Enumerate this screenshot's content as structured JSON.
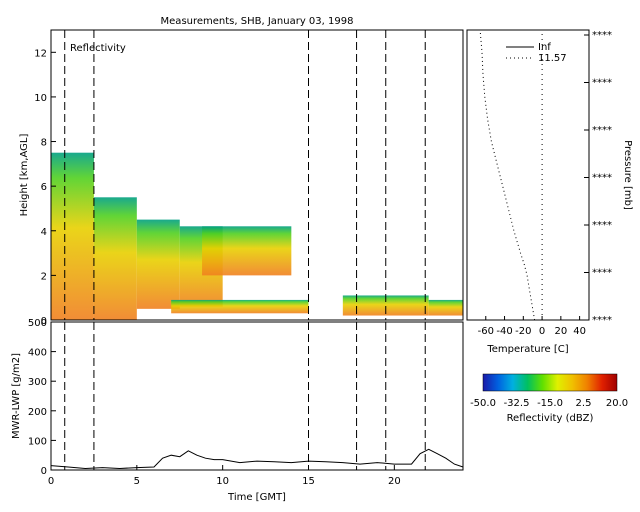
{
  "title": "Measurements, SHB, January 03, 1998",
  "reflectivity_panel": {
    "label": "Reflectivity",
    "ylabel": "Height [km,AGL]",
    "ylim": [
      0,
      13
    ],
    "yticks": [
      0,
      2,
      4,
      6,
      8,
      10,
      12
    ],
    "xlim": [
      0,
      24
    ],
    "dashed_lines_gmt": [
      0.8,
      2.5,
      15.0,
      17.8,
      19.5,
      21.8
    ]
  },
  "lwp_panel": {
    "ylabel": "MWR-LWP [g/m2]",
    "xlabel": "Time [GMT]",
    "ylim": [
      0,
      500
    ],
    "yticks": [
      0,
      100,
      200,
      300,
      400,
      500
    ],
    "xticks": [
      0,
      5,
      10,
      15,
      20
    ],
    "xlim": [
      0,
      24
    ]
  },
  "profile_panel": {
    "xlabel": "Temperature [C]",
    "ylabel_right": "Pressure [mb]",
    "xticks": [
      -60,
      -40,
      -20,
      0,
      20,
      40
    ],
    "xlim": [
      -80,
      50
    ],
    "right_tick_label": "****",
    "legend": [
      {
        "label": "Inf",
        "style": "solid"
      },
      {
        "label": "11.57",
        "style": "dotted"
      }
    ]
  },
  "colorbar": {
    "label": "Reflectivity (dBZ)",
    "ticks": [
      "-50.0",
      "-32.5",
      "-15.0",
      "2.5",
      "20.0"
    ],
    "colors": [
      "#1a1aa8",
      "#0060e0",
      "#00b0e0",
      "#00c060",
      "#60e000",
      "#e0f000",
      "#f0c000",
      "#f08000",
      "#e02000",
      "#a00000"
    ]
  },
  "chart_data": [
    {
      "type": "heatmap",
      "title": "Reflectivity",
      "xlabel": "Time [GMT]",
      "ylabel": "Height [km,AGL]",
      "xlim": [
        0,
        24
      ],
      "ylim": [
        0,
        13
      ],
      "cloud_regions": [
        {
          "t0": 0.0,
          "t1": 2.5,
          "base": 0.0,
          "top": 7.5
        },
        {
          "t0": 2.5,
          "t1": 5.0,
          "base": 0.0,
          "top": 5.5
        },
        {
          "t0": 5.0,
          "t1": 7.5,
          "base": 0.5,
          "top": 4.5
        },
        {
          "t0": 7.5,
          "t1": 10.0,
          "base": 0.6,
          "top": 4.2
        },
        {
          "t0": 8.8,
          "t1": 14.0,
          "base": 2.0,
          "top": 4.2
        },
        {
          "t0": 7.0,
          "t1": 15.0,
          "base": 0.3,
          "top": 0.9
        },
        {
          "t0": 17.0,
          "t1": 22.0,
          "base": 0.2,
          "top": 1.1
        },
        {
          "t0": 22.0,
          "t1": 24.0,
          "base": 0.2,
          "top": 0.9
        }
      ]
    },
    {
      "type": "line",
      "title": "",
      "xlabel": "Time [GMT]",
      "ylabel": "MWR-LWP [g/m2]",
      "xlim": [
        0,
        24
      ],
      "ylim": [
        0,
        500
      ],
      "x": [
        0,
        1,
        2,
        3,
        4,
        5,
        6,
        6.5,
        7,
        7.5,
        8,
        8.5,
        9,
        9.5,
        10,
        11,
        12,
        13,
        14,
        15,
        16,
        17,
        18,
        19,
        20,
        21,
        21.5,
        22,
        22.5,
        23,
        23.5,
        24
      ],
      "y": [
        15,
        10,
        5,
        8,
        5,
        8,
        10,
        40,
        50,
        45,
        65,
        50,
        40,
        35,
        35,
        25,
        30,
        28,
        25,
        30,
        28,
        25,
        20,
        25,
        20,
        20,
        55,
        70,
        55,
        40,
        20,
        10
      ]
    },
    {
      "type": "line",
      "title": "",
      "xlabel": "Temperature [C]",
      "ylabel": "Pressure [mb]",
      "xlim": [
        -80,
        50
      ],
      "height_km": [
        0,
        0.5,
        1,
        1.5,
        2,
        2.5,
        3,
        4,
        5,
        6,
        7,
        8,
        9,
        10,
        11,
        12,
        13
      ],
      "series": [
        {
          "name": "Inf",
          "values": [
            0,
            0,
            0,
            0,
            0,
            0,
            0,
            0,
            0,
            0,
            0,
            0,
            0,
            0,
            0,
            0,
            0
          ]
        },
        {
          "name": "11.57",
          "values": [
            -8,
            -10,
            -12,
            -14,
            -16,
            -19,
            -23,
            -30,
            -36,
            -42,
            -48,
            -54,
            -58,
            -61,
            -63,
            -64,
            -66
          ]
        }
      ]
    }
  ]
}
